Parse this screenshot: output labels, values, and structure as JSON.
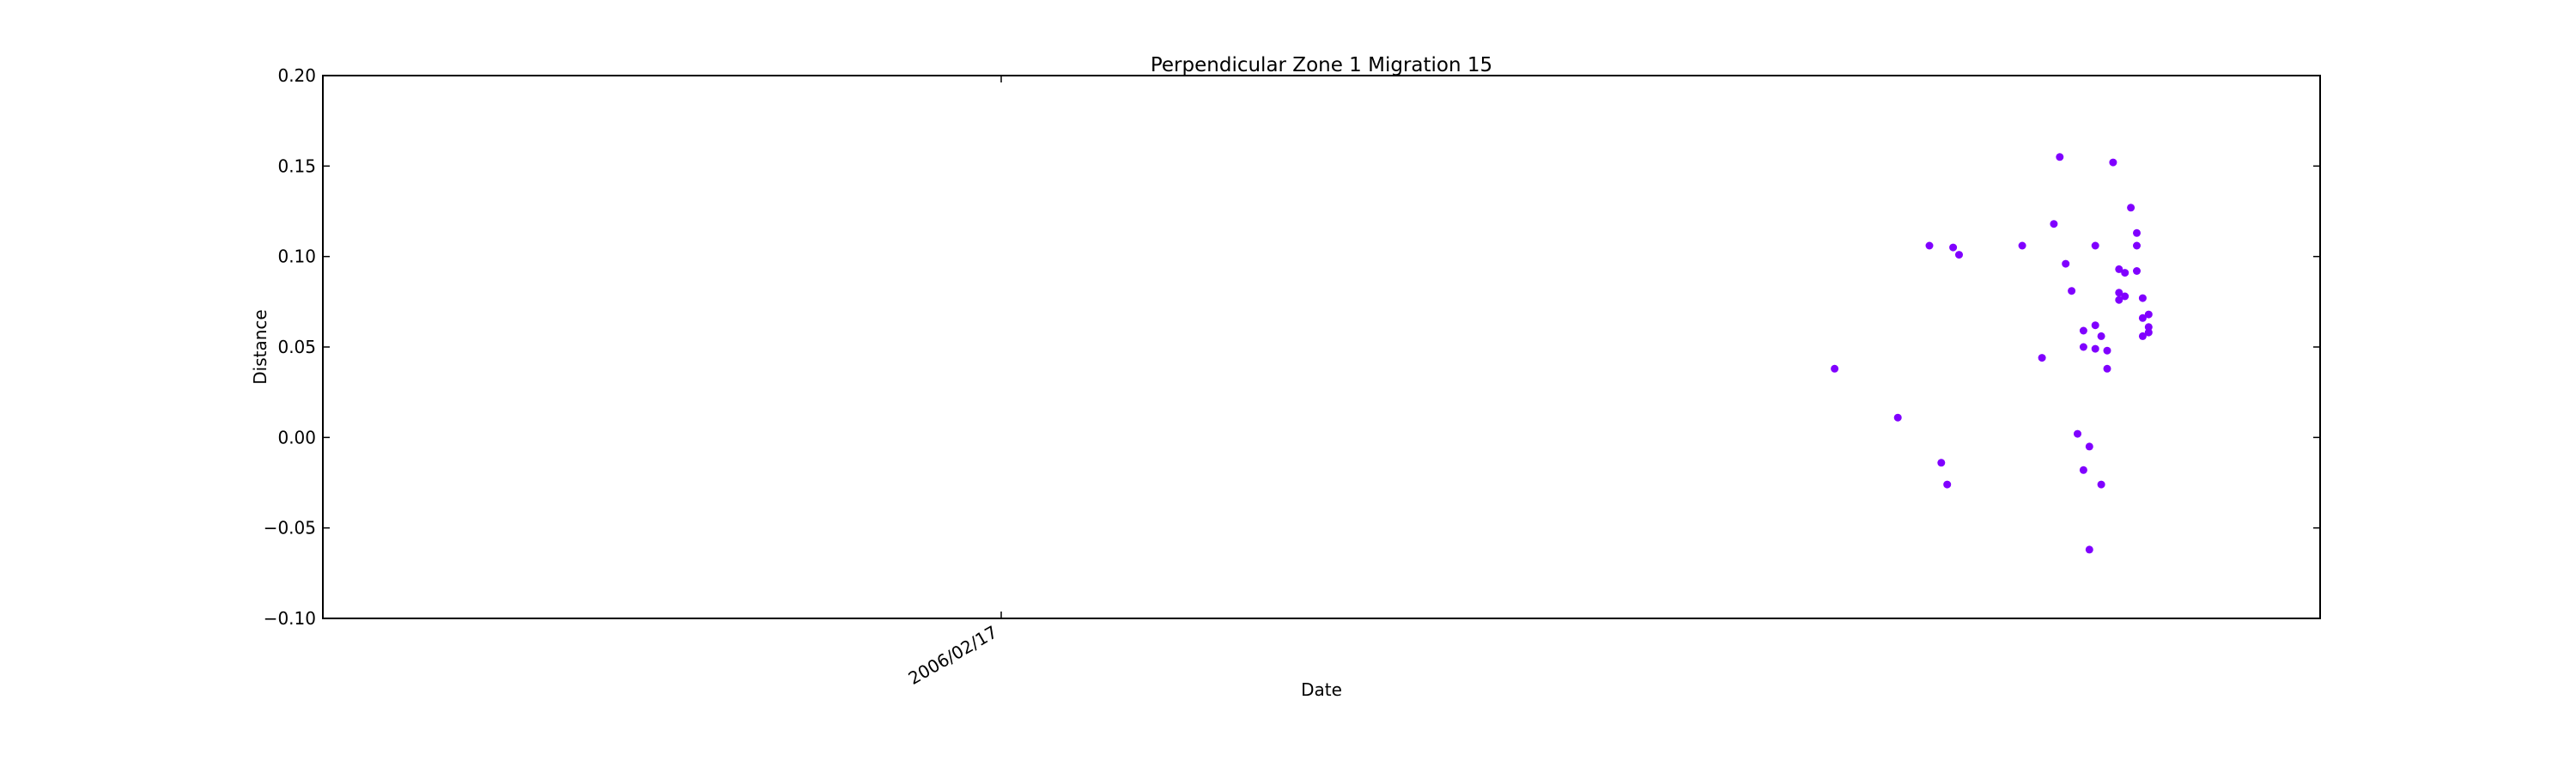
{
  "chart_data": {
    "type": "scatter",
    "title": "Perpendicular Zone 1 Migration 15",
    "xlabel": "Date",
    "ylabel": "Distance",
    "ylim": [
      -0.1,
      0.2
    ],
    "yticks": [
      -0.1,
      -0.05,
      0.0,
      0.05,
      0.1,
      0.15,
      0.2
    ],
    "ytick_labels": [
      "−0.10",
      "−0.05",
      "0.00",
      "0.05",
      "0.10",
      "0.15",
      "0.20"
    ],
    "xtick_labels": [
      "2006/02/17"
    ],
    "grid": false,
    "marker_color": "#8000ff",
    "series": [
      {
        "points": [
          {
            "x": "2007/04/15",
            "y": 0.038
          },
          {
            "x": "2007/05/17",
            "y": 0.011
          },
          {
            "x": "2007/06/02",
            "y": 0.106
          },
          {
            "x": "2007/06/08",
            "y": -0.014
          },
          {
            "x": "2007/06/11",
            "y": -0.026
          },
          {
            "x": "2007/06/14",
            "y": 0.105
          },
          {
            "x": "2007/06/17",
            "y": 0.101
          },
          {
            "x": "2007/07/19",
            "y": 0.106
          },
          {
            "x": "2007/07/29",
            "y": 0.044
          },
          {
            "x": "2007/08/04",
            "y": 0.118
          },
          {
            "x": "2007/08/07",
            "y": 0.155
          },
          {
            "x": "2007/08/10",
            "y": 0.096
          },
          {
            "x": "2007/08/13",
            "y": 0.081
          },
          {
            "x": "2007/08/16",
            "y": 0.002
          },
          {
            "x": "2007/08/19",
            "y": -0.018
          },
          {
            "x": "2007/08/19",
            "y": 0.059
          },
          {
            "x": "2007/08/19",
            "y": 0.05
          },
          {
            "x": "2007/08/22",
            "y": -0.062
          },
          {
            "x": "2007/08/22",
            "y": -0.005
          },
          {
            "x": "2007/08/25",
            "y": 0.106
          },
          {
            "x": "2007/08/25",
            "y": 0.062
          },
          {
            "x": "2007/08/25",
            "y": 0.049
          },
          {
            "x": "2007/08/28",
            "y": -0.026
          },
          {
            "x": "2007/08/28",
            "y": 0.056
          },
          {
            "x": "2007/08/31",
            "y": 0.048
          },
          {
            "x": "2007/08/31",
            "y": 0.038
          },
          {
            "x": "2007/09/03",
            "y": 0.152
          },
          {
            "x": "2007/09/06",
            "y": 0.093
          },
          {
            "x": "2007/09/06",
            "y": 0.08
          },
          {
            "x": "2007/09/06",
            "y": 0.076
          },
          {
            "x": "2007/09/09",
            "y": 0.091
          },
          {
            "x": "2007/09/09",
            "y": 0.078
          },
          {
            "x": "2007/09/12",
            "y": 0.127
          },
          {
            "x": "2007/09/15",
            "y": 0.113
          },
          {
            "x": "2007/09/15",
            "y": 0.106
          },
          {
            "x": "2007/09/15",
            "y": 0.092
          },
          {
            "x": "2007/09/18",
            "y": 0.077
          },
          {
            "x": "2007/09/18",
            "y": 0.066
          },
          {
            "x": "2007/09/18",
            "y": 0.056
          },
          {
            "x": "2007/09/21",
            "y": 0.068
          },
          {
            "x": "2007/09/21",
            "y": 0.061
          },
          {
            "x": "2007/09/21",
            "y": 0.058
          }
        ]
      }
    ]
  }
}
